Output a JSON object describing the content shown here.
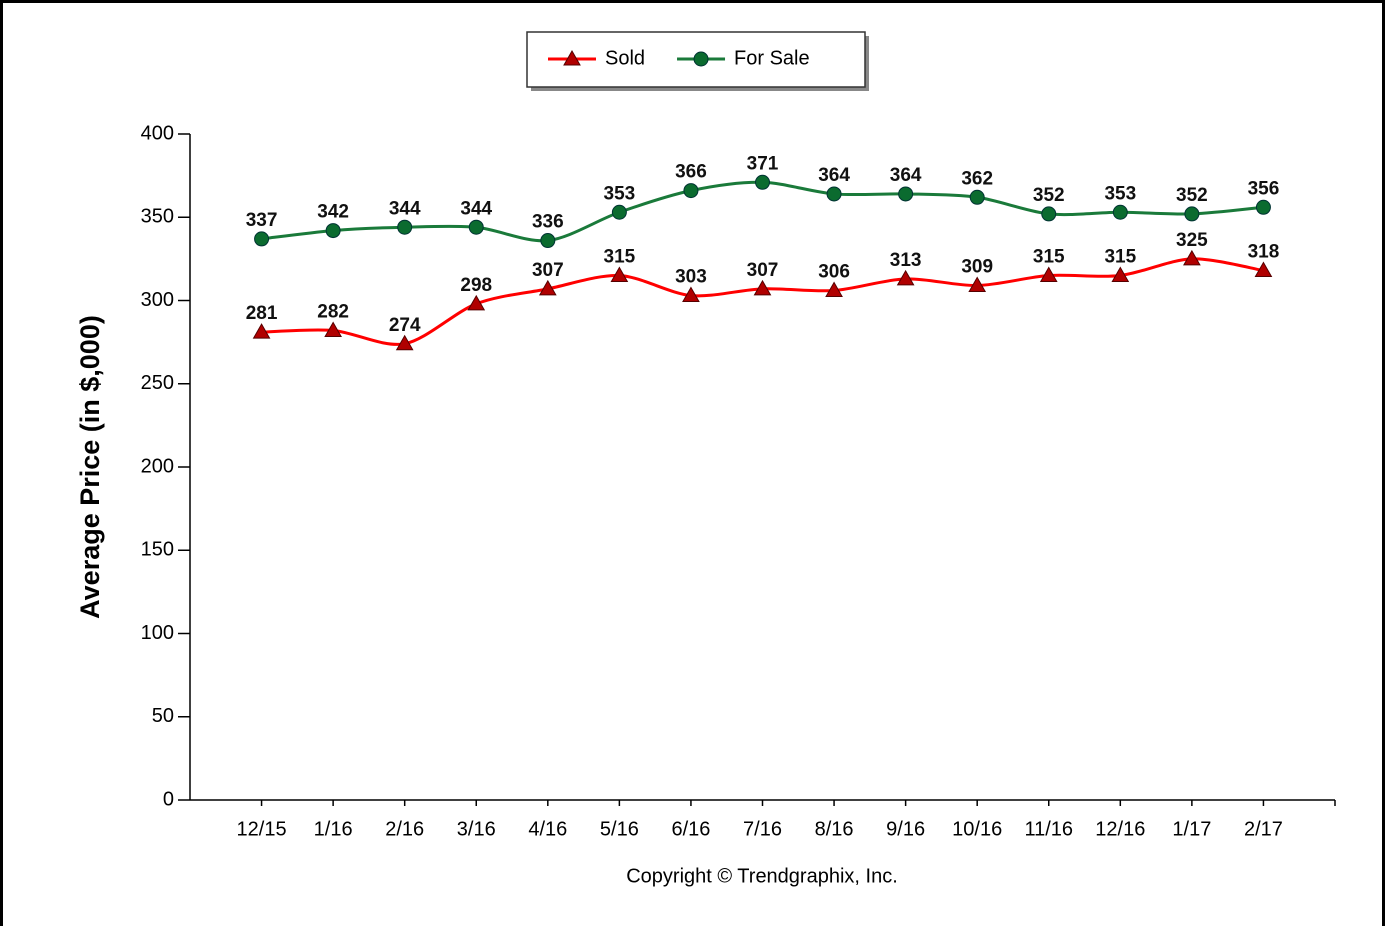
{
  "chart_data": {
    "type": "line",
    "y_label": "Average Price (in $,000)",
    "annotation": "Copyright © Trendgraphix, Inc.",
    "categories": [
      "12/15",
      "1/16",
      "2/16",
      "3/16",
      "4/16",
      "5/16",
      "6/16",
      "7/16",
      "8/16",
      "9/16",
      "10/16",
      "11/16",
      "12/16",
      "1/17",
      "2/17"
    ],
    "series": [
      {
        "name": "Sold",
        "color": "#ff0000",
        "marker": "triangle",
        "marker_color": "#b00000",
        "values": [
          281,
          282,
          274,
          298,
          307,
          315,
          303,
          307,
          306,
          313,
          309,
          315,
          315,
          325,
          318
        ]
      },
      {
        "name": "For Sale",
        "color": "#1a7a3a",
        "marker": "circle",
        "marker_color": "#0b6b2f",
        "values": [
          337,
          342,
          344,
          344,
          336,
          353,
          366,
          371,
          364,
          364,
          362,
          352,
          353,
          352,
          356
        ]
      }
    ],
    "ylim": [
      0,
      400
    ],
    "yticks": [
      0,
      50,
      100,
      150,
      200,
      250,
      300,
      350,
      400
    ],
    "grid": false,
    "legend": "top"
  }
}
